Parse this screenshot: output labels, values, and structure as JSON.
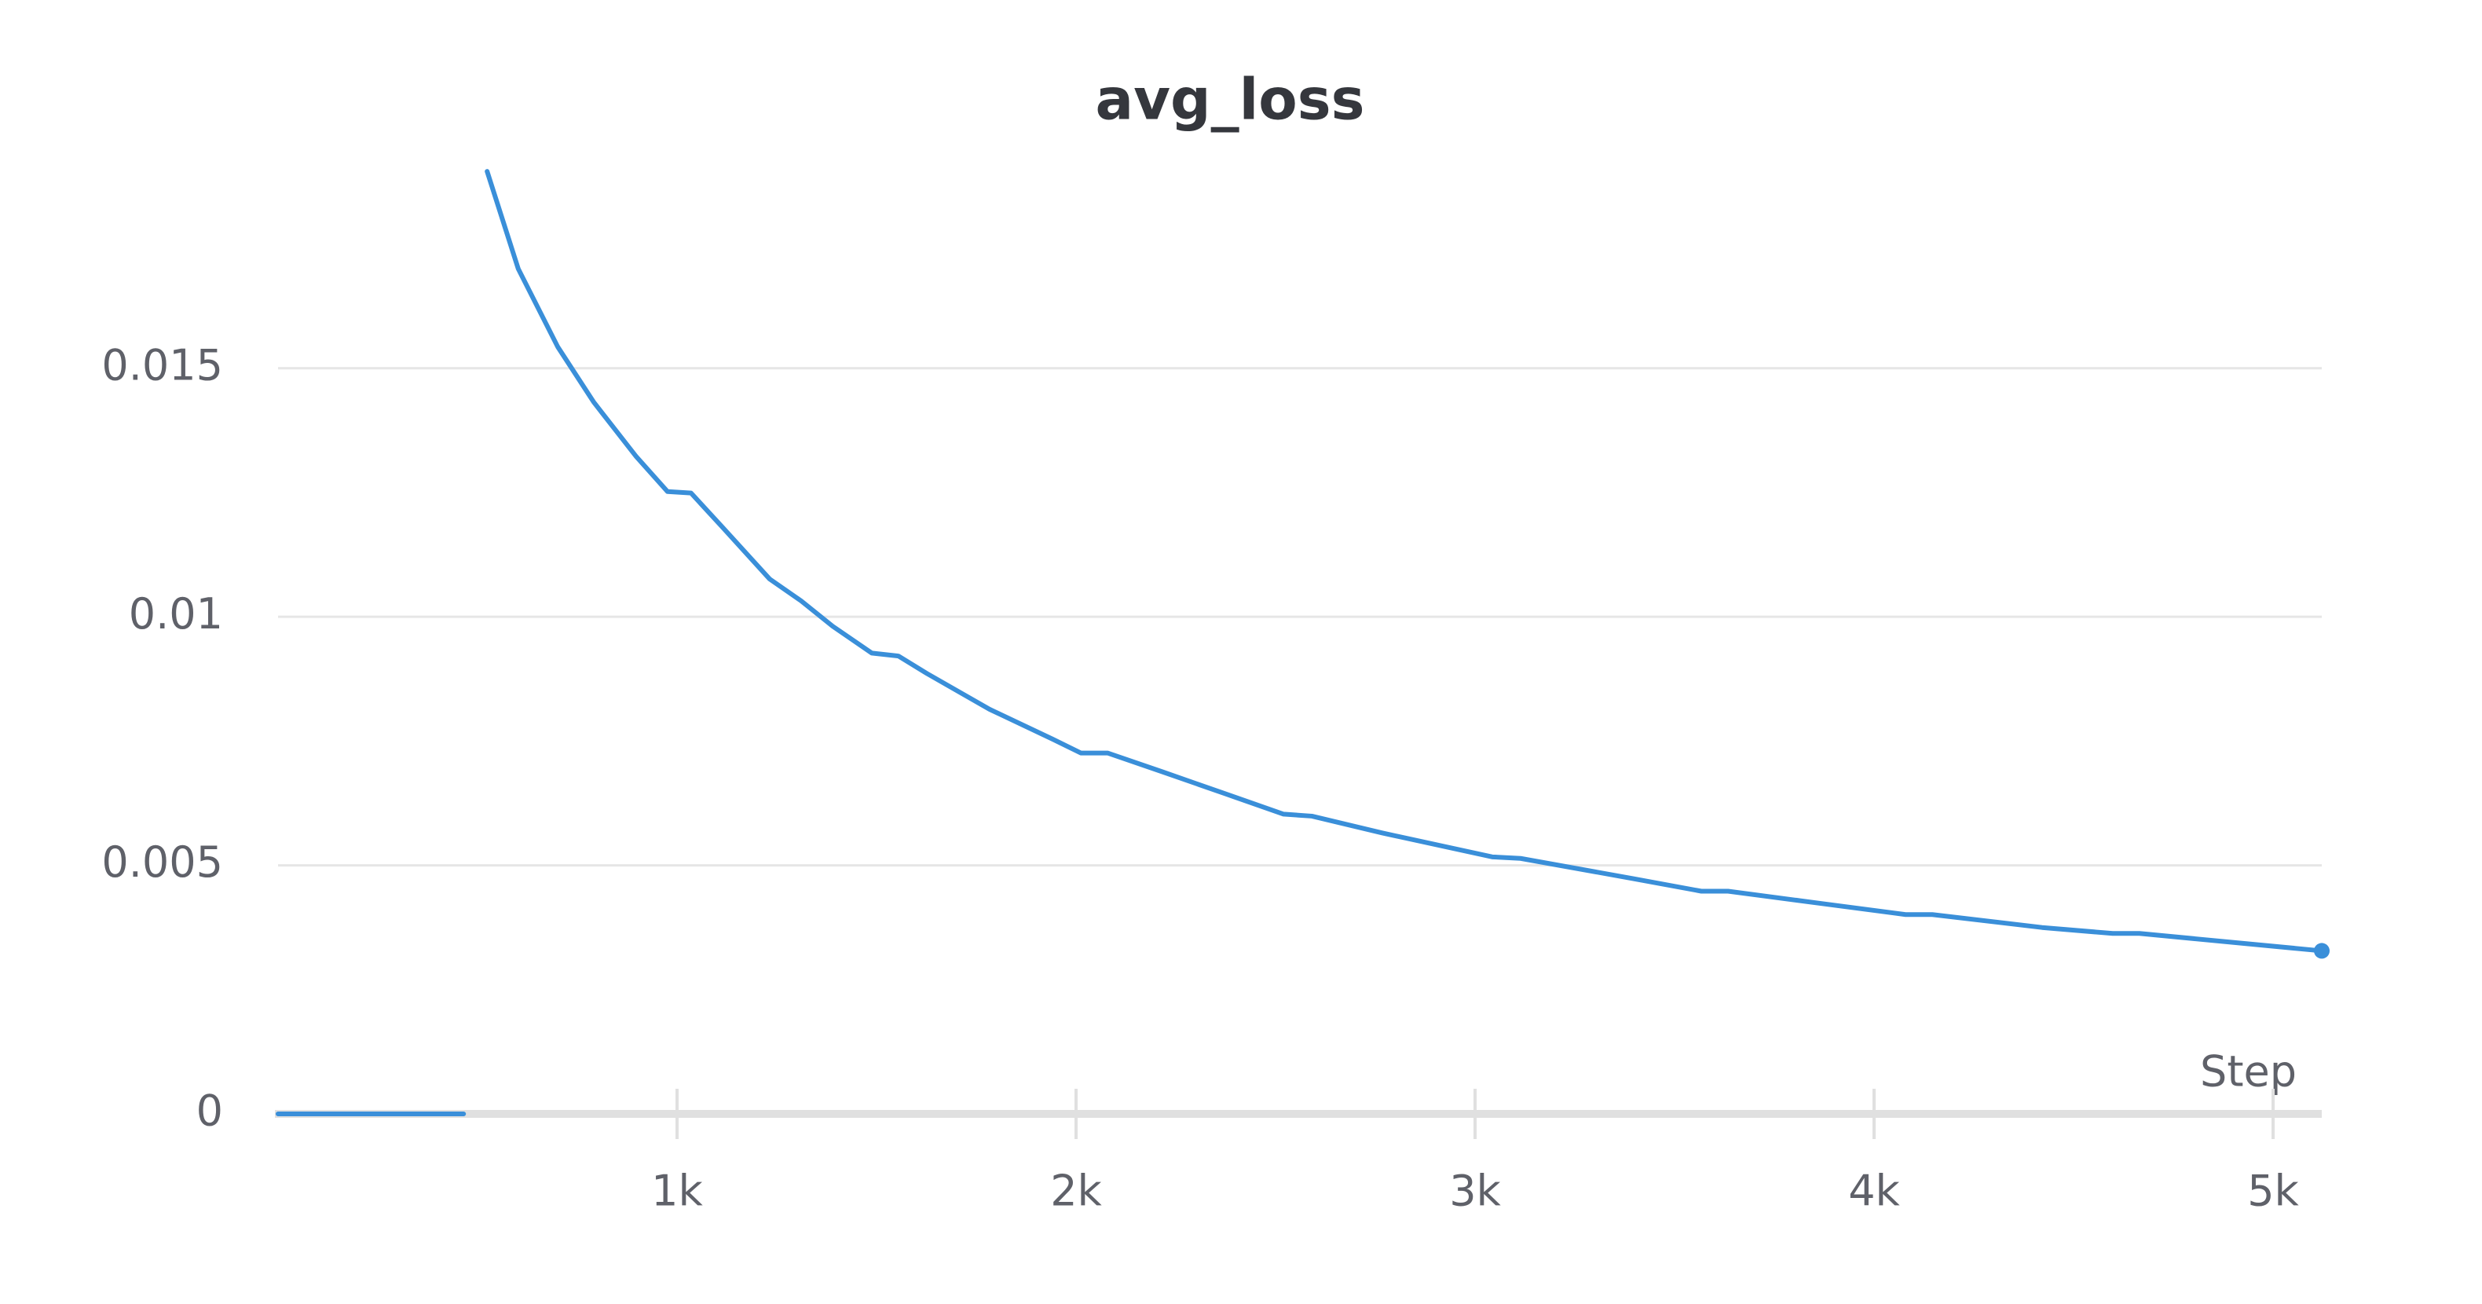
{
  "chart_data": {
    "type": "line",
    "title": "avg_loss",
    "x_label": "Step",
    "x": [
      0,
      100,
      200,
      300,
      400,
      465,
      494,
      524,
      602,
      701,
      791,
      898,
      976,
      1035,
      1114,
      1232,
      1311,
      1390,
      1488,
      1555,
      1626,
      1783,
      1941,
      2012,
      2079,
      2217,
      2374,
      2520,
      2591,
      2768,
      3043,
      3114,
      3398,
      3567,
      3634,
      3870,
      4079,
      4146,
      4421,
      4598,
      4665,
      5122
    ],
    "series": [
      {
        "color": "#3a8fd9",
        "values": [
          0,
          0,
          0,
          0,
          0,
          0,
          null,
          0.01896,
          0.017,
          0.01543,
          0.01432,
          0.01322,
          0.01252,
          0.01249,
          0.0118,
          0.01076,
          0.01032,
          0.00981,
          0.00927,
          0.00921,
          0.00886,
          0.00814,
          0.00754,
          0.00726,
          0.00726,
          0.00688,
          0.00644,
          0.00603,
          0.00599,
          0.00565,
          0.00517,
          0.00514,
          0.00473,
          0.00448,
          0.00448,
          0.00423,
          0.00401,
          0.00401,
          0.00375,
          0.00363,
          0.00363,
          0.00328
        ]
      }
    ],
    "xlim": [
      0,
      5122
    ],
    "ylim": [
      0,
      0.0195
    ],
    "xticks": [
      {
        "value": 1000,
        "label": "1k"
      },
      {
        "value": 2000,
        "label": "2k"
      },
      {
        "value": 3000,
        "label": "3k"
      },
      {
        "value": 4000,
        "label": "4k"
      },
      {
        "value": 5000,
        "label": "5k"
      }
    ],
    "yticks": [
      0,
      0.005,
      0.01,
      0.015
    ],
    "grid": true
  }
}
